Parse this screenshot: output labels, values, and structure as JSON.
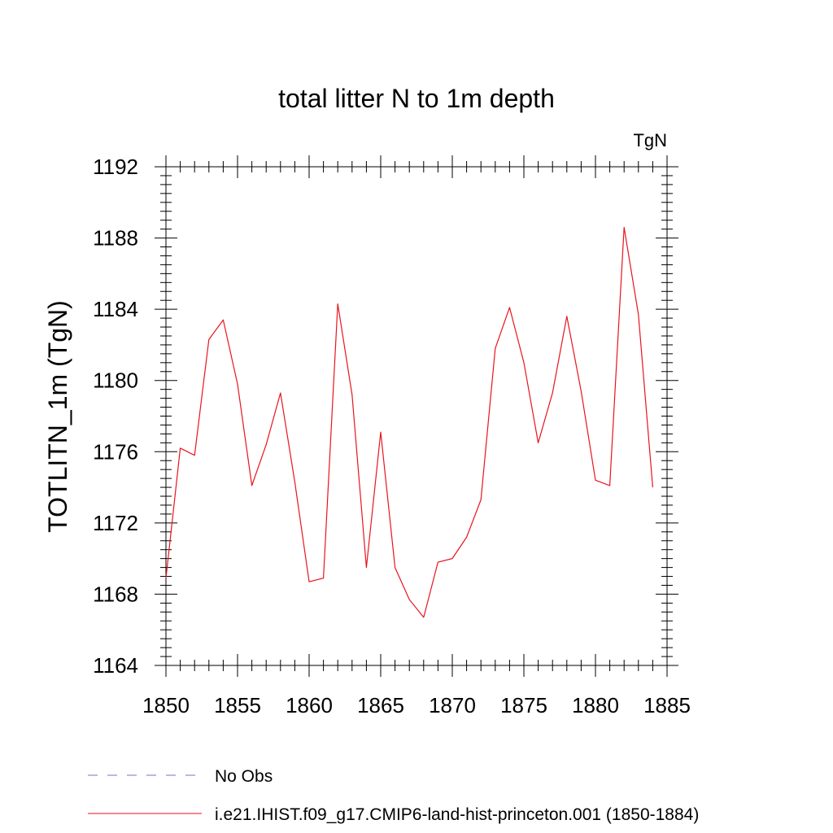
{
  "chart_data": {
    "type": "line",
    "title": "total litter N to 1m depth",
    "units_label": "TgN",
    "ylabel": "TOTLITN_1m  (TgN)",
    "xlabel": "",
    "xlim": [
      1850,
      1885
    ],
    "ylim": [
      1164,
      1192
    ],
    "x_ticks": [
      1850,
      1855,
      1860,
      1865,
      1870,
      1875,
      1880,
      1885
    ],
    "y_ticks": [
      1164,
      1168,
      1172,
      1176,
      1180,
      1184,
      1188,
      1192
    ],
    "grid": false,
    "x": [
      1850,
      1851,
      1852,
      1853,
      1854,
      1855,
      1856,
      1857,
      1858,
      1859,
      1860,
      1861,
      1862,
      1863,
      1864,
      1865,
      1866,
      1867,
      1868,
      1869,
      1870,
      1871,
      1872,
      1873,
      1874,
      1875,
      1876,
      1877,
      1878,
      1879,
      1880,
      1881,
      1882,
      1883,
      1884
    ],
    "series": [
      {
        "name": "i.e21.IHIST.f09_g17.CMIP6-land-hist-princeton.001 (1850-1884)",
        "color": "#e8141e",
        "style": "solid",
        "values": [
          1168.9,
          1176.2,
          1175.8,
          1182.3,
          1183.4,
          1179.8,
          1174.1,
          1176.4,
          1179.3,
          1174.3,
          1168.7,
          1168.9,
          1184.3,
          1179.2,
          1169.5,
          1177.1,
          1169.5,
          1167.7,
          1166.7,
          1169.8,
          1170.0,
          1171.2,
          1173.3,
          1181.8,
          1184.1,
          1181.0,
          1176.5,
          1179.3,
          1183.6,
          1179.4,
          1174.4,
          1174.1,
          1188.6,
          1183.7,
          1174.0
        ]
      }
    ],
    "legend": {
      "placement": "bottom-left",
      "entries": [
        {
          "label": "No Obs",
          "color": "#7b6fc4",
          "style": "dashed"
        },
        {
          "label": "i.e21.IHIST.f09_g17.CMIP6-land-hist-princeton.001 (1850-1884)",
          "color": "#e8141e",
          "style": "solid"
        }
      ]
    }
  }
}
